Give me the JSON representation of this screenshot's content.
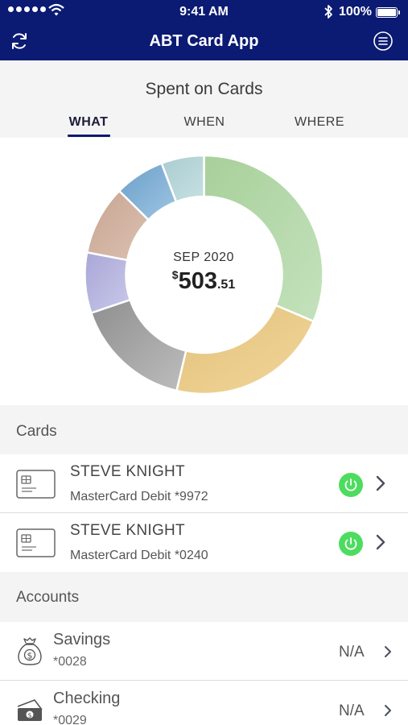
{
  "status_bar": {
    "time": "9:41 AM",
    "battery": "100%",
    "icons": [
      "signal-dots-icon",
      "wifi-icon",
      "bluetooth-icon",
      "battery-icon"
    ]
  },
  "nav": {
    "title": "ABT Card App",
    "left_icon": "refresh-icon",
    "right_icon": "menu-icon",
    "background": "#0b1a72"
  },
  "spending": {
    "heading": "Spent on Cards",
    "tabs": [
      {
        "label": "WHAT",
        "selected": true
      },
      {
        "label": "WHEN",
        "selected": false
      },
      {
        "label": "WHERE",
        "selected": false
      }
    ],
    "period": "SEP 2020",
    "currency": "$",
    "amount_main": "503",
    "amount_cents": ".51"
  },
  "chart_data": {
    "type": "pie",
    "donut": true,
    "title": "",
    "slices": [
      {
        "share": 0.314,
        "color_light": "#c4e2bd",
        "color_dark": "#a8d09a"
      },
      {
        "share": 0.223,
        "color_light": "#f2d79b",
        "color_dark": "#e2c07a"
      },
      {
        "share": 0.161,
        "color_light": "#bdbdbd",
        "color_dark": "#8f8f8f"
      },
      {
        "share": 0.082,
        "color_light": "#c9c8ea",
        "color_dark": "#a9a7d6"
      },
      {
        "share": 0.094,
        "color_light": "#dcc1b2",
        "color_dark": "#c7a491"
      },
      {
        "share": 0.068,
        "color_light": "#9fc5e2",
        "color_dark": "#6a9fc9"
      },
      {
        "share": 0.058,
        "color_light": "#c7e0e2",
        "color_dark": "#a9ccd1"
      }
    ]
  },
  "cards_section": {
    "label": "Cards",
    "items": [
      {
        "holder": "STEVE KNIGHT",
        "description": "MasterCard Debit *9972",
        "active": true
      },
      {
        "holder": "STEVE KNIGHT",
        "description": "MasterCard Debit *0240",
        "active": true
      }
    ]
  },
  "accounts_section": {
    "label": "Accounts",
    "items": [
      {
        "name": "Savings",
        "number": "*0028",
        "value": "N/A",
        "icon": "money-bag-icon"
      },
      {
        "name": "Checking",
        "number": "*0029",
        "value": "N/A",
        "icon": "cash-stack-icon"
      }
    ]
  },
  "colors": {
    "accent": "#0b1a72",
    "power_on": "#4ddc5f",
    "section_bg": "#f4f4f4"
  }
}
